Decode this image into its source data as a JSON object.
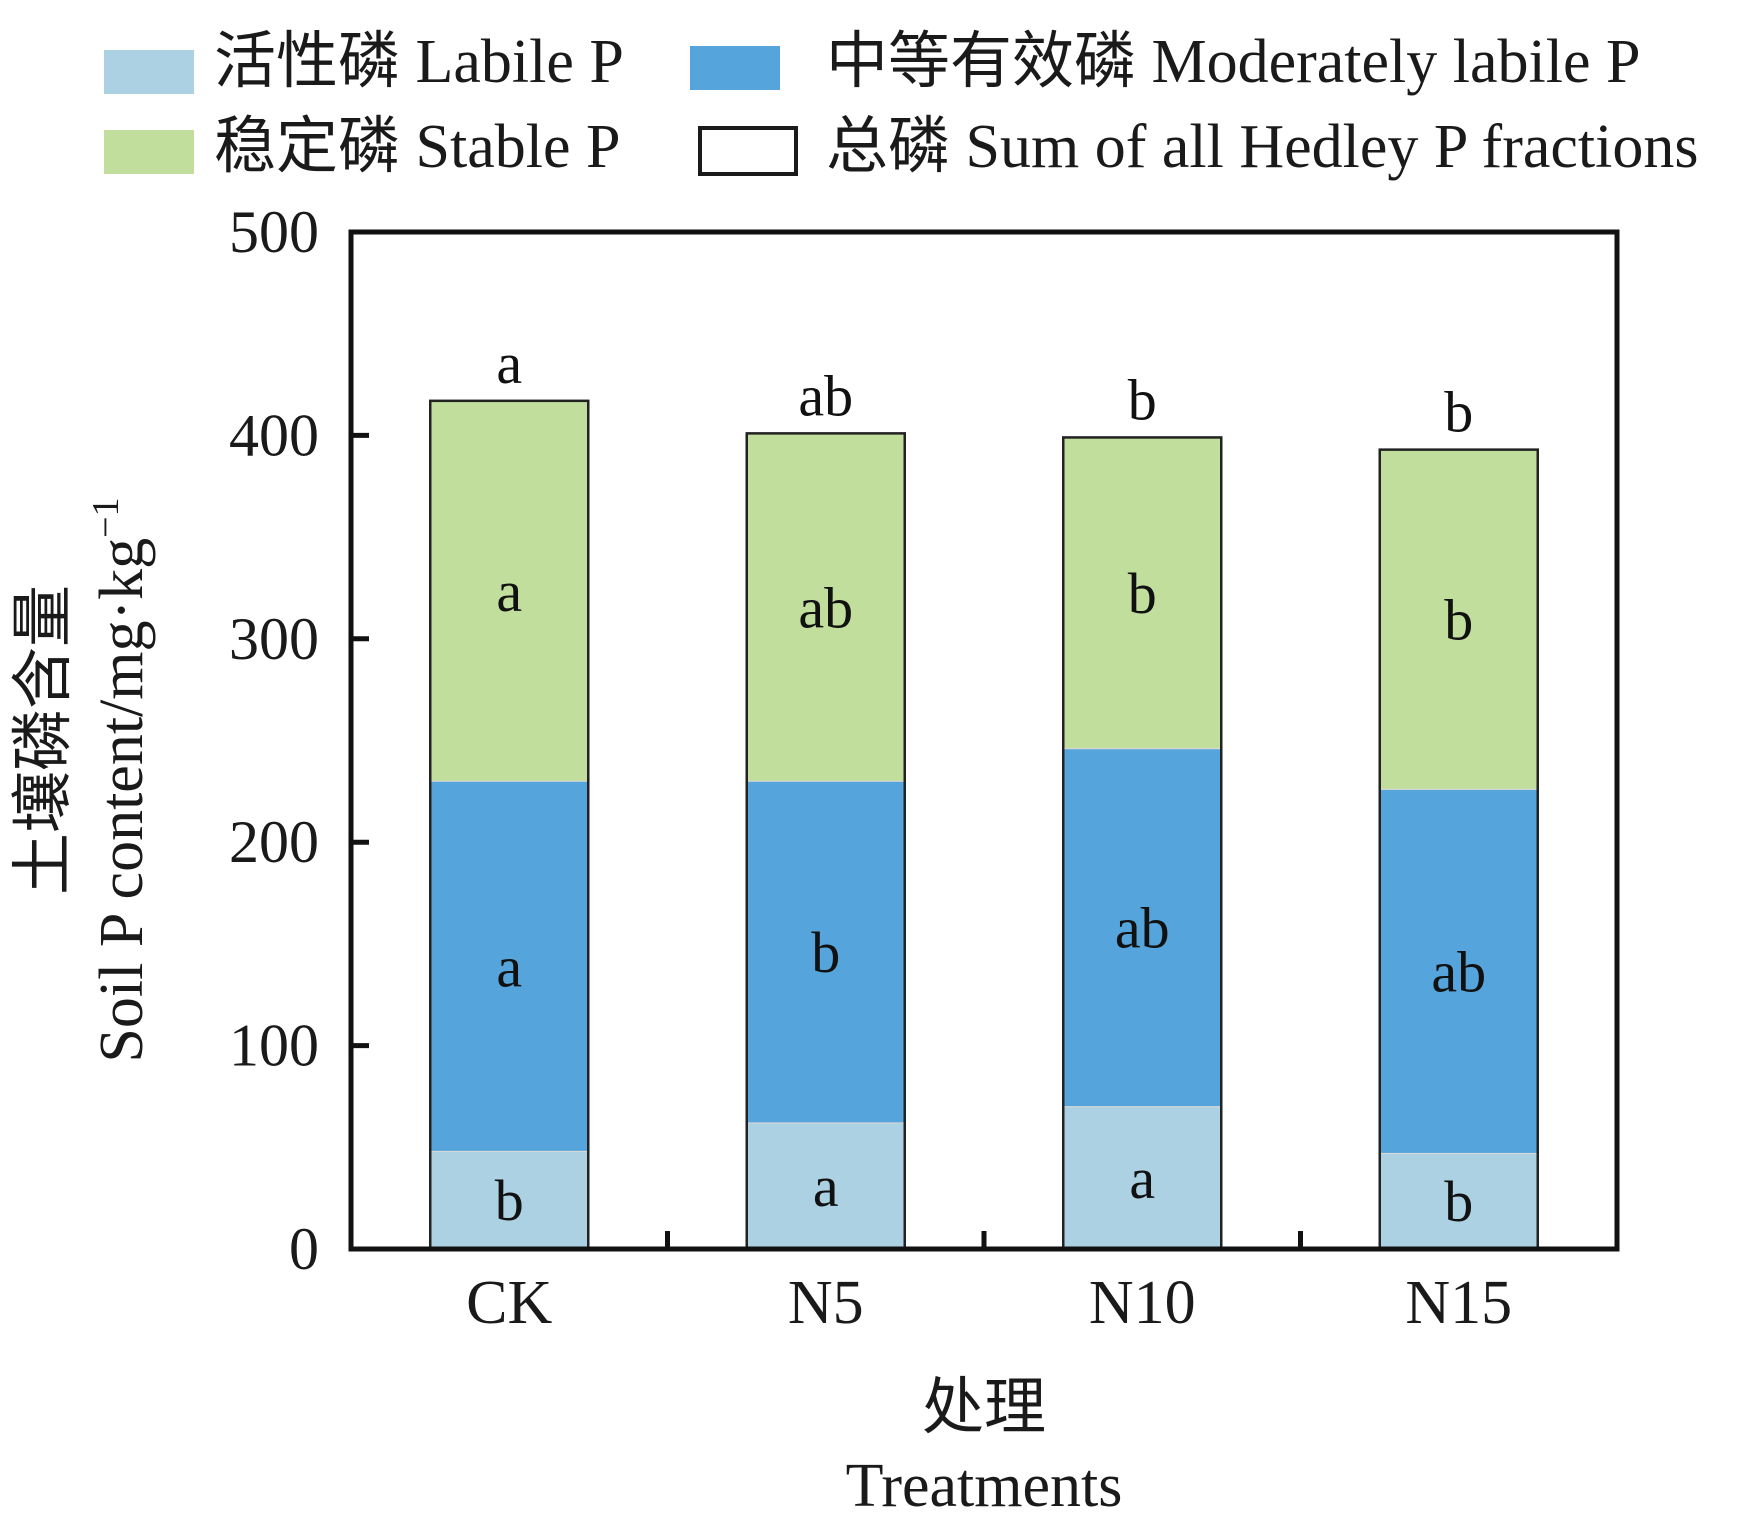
{
  "chart_data": {
    "type": "bar",
    "stacked": true,
    "categories": [
      "CK",
      "N5",
      "N10",
      "N15"
    ],
    "series": [
      {
        "name": "活性磷 Labile P",
        "color": "#abd1e3",
        "values": [
          48,
          62,
          70,
          47
        ],
        "significance": [
          "b",
          "a",
          "a",
          "b"
        ]
      },
      {
        "name": "中等有效磷 Moderately labile P",
        "color": "#55a5dc",
        "values": [
          182,
          168,
          176,
          179
        ],
        "significance": [
          "a",
          "b",
          "ab",
          "ab"
        ]
      },
      {
        "name": "稳定磷 Stable P",
        "color": "#c2de9c",
        "values": [
          187,
          171,
          153,
          167
        ],
        "significance": [
          "a",
          "ab",
          "b",
          "b"
        ]
      }
    ],
    "total": {
      "name": "总磷 Sum of all Hedley P fractions",
      "values": [
        417,
        401,
        399,
        393
      ],
      "significance": [
        "a",
        "ab",
        "b",
        "b"
      ]
    },
    "xlabel_cn": "处理",
    "xlabel_en": "Treatments",
    "ylabel_cn": "土壤磷含量",
    "ylabel_en": "Soil P content/mg·kg",
    "ylabel_sup": "−1",
    "ylim": [
      0,
      500
    ],
    "yticks": [
      "0",
      "100",
      "200",
      "300",
      "400",
      "500"
    ],
    "grid": false,
    "legend_position": "top"
  }
}
